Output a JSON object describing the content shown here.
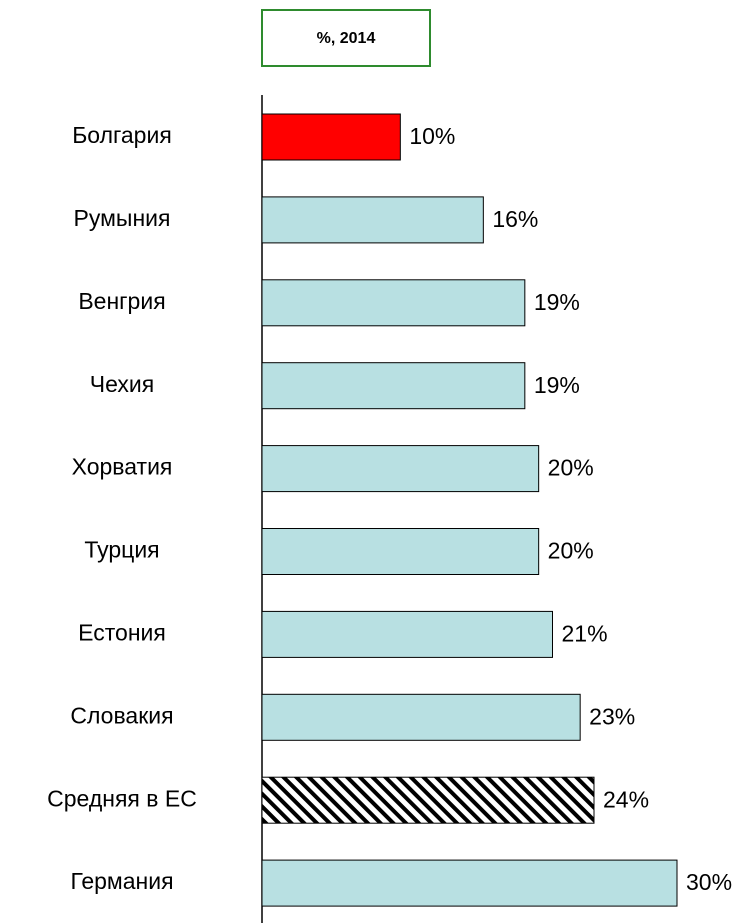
{
  "chart_data": {
    "type": "barh",
    "title": "%, 2014",
    "categories": [
      "Болгария",
      "Румыния",
      "Венгрия",
      "Чехия",
      "Хорватия",
      "Турция",
      "Естония",
      "Словакия",
      "Средняя в ЕС",
      "Германия"
    ],
    "values": [
      10,
      16,
      19,
      19,
      20,
      20,
      21,
      23,
      24,
      30
    ],
    "value_labels": [
      "10%",
      "16%",
      "19%",
      "19%",
      "20%",
      "20%",
      "21%",
      "23%",
      "24%",
      "30%"
    ],
    "colors": [
      "#ff0000",
      "#b8e0e2",
      "#b8e0e2",
      "#b8e0e2",
      "#b8e0e2",
      "#b8e0e2",
      "#b8e0e2",
      "#b8e0e2",
      "#ffffff",
      "#b8e0e2"
    ],
    "hatched_categories": [
      "Средняя в ЕС"
    ],
    "title_box_color": "#2e8b2e",
    "xlim": [
      0,
      30
    ]
  }
}
